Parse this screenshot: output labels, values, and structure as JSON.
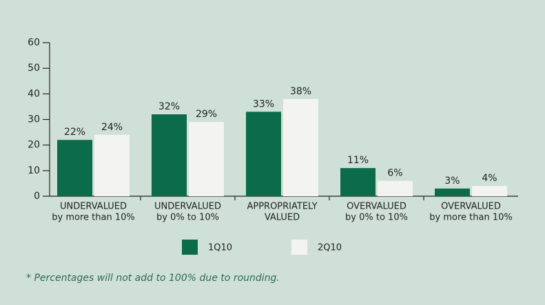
{
  "chart_data": {
    "type": "bar",
    "categories": [
      [
        "UNDERVALUED",
        "by more than 10%"
      ],
      [
        "UNDERVALUED",
        "by 0% to 10%"
      ],
      [
        "APPROPRIATELY",
        "VALUED"
      ],
      [
        "OVERVALUED",
        "by 0% to 10%"
      ],
      [
        "OVERVALUED",
        "by more than 10%"
      ]
    ],
    "series": [
      {
        "name": "1Q10",
        "color": "#0b6b4b",
        "values": [
          22,
          32,
          33,
          11,
          3
        ],
        "value_labels": [
          "22%",
          "32%",
          "33%",
          "11%",
          "3%"
        ]
      },
      {
        "name": "2Q10",
        "color": "#f3f4f2",
        "values": [
          24,
          29,
          38,
          6,
          4
        ],
        "value_labels": [
          "24%",
          "29%",
          "38%",
          "6%",
          "4%"
        ]
      }
    ],
    "ylim": [
      0,
      60
    ],
    "yticks": [
      0,
      10,
      20,
      30,
      40,
      50,
      60
    ],
    "grid": false,
    "footnote": "* Percentages will not add to 100% due to rounding."
  }
}
